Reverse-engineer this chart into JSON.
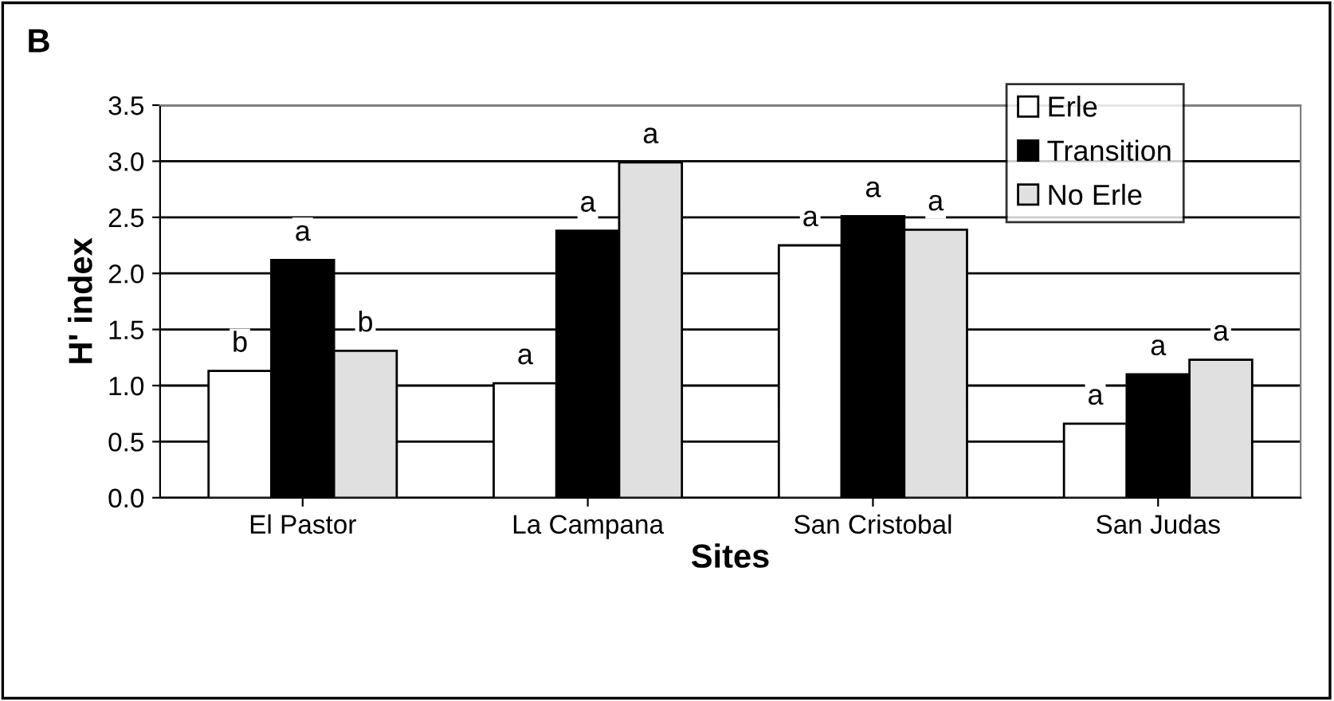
{
  "chart_data": {
    "type": "bar",
    "title": "B",
    "xlabel": "Sites",
    "ylabel": "H' index",
    "categories": [
      "El Pastor",
      "La Campana",
      "San Cristobal",
      "San Judas"
    ],
    "series": [
      {
        "name": "Erle",
        "color": "#ffffff",
        "values": [
          1.13,
          1.02,
          2.25,
          0.66
        ],
        "value_labels": [
          "b",
          "a",
          "a",
          "a"
        ]
      },
      {
        "name": "Transition",
        "color": "#000000",
        "values": [
          2.12,
          2.38,
          2.51,
          1.1
        ],
        "value_labels": [
          "a",
          "a",
          "a",
          "a"
        ]
      },
      {
        "name": "No Erle",
        "color": "#e0e0e0",
        "values": [
          1.31,
          2.99,
          2.39,
          1.23
        ],
        "value_labels": [
          "b",
          "a",
          "a",
          "a"
        ]
      }
    ],
    "ylim": [
      0,
      3.5
    ],
    "yticks": [
      {
        "value": 0,
        "label": "0.0"
      },
      {
        "value": 0.5,
        "label": "0.5"
      },
      {
        "value": 1,
        "label": "1.0"
      },
      {
        "value": 1.5,
        "label": "1.5"
      },
      {
        "value": 2,
        "label": "2.0"
      },
      {
        "value": 2.5,
        "label": "2.5"
      },
      {
        "value": 3,
        "label": "3.0"
      },
      {
        "value": 3.5,
        "label": "3.5"
      }
    ],
    "grid": "y",
    "legend": "top right"
  }
}
